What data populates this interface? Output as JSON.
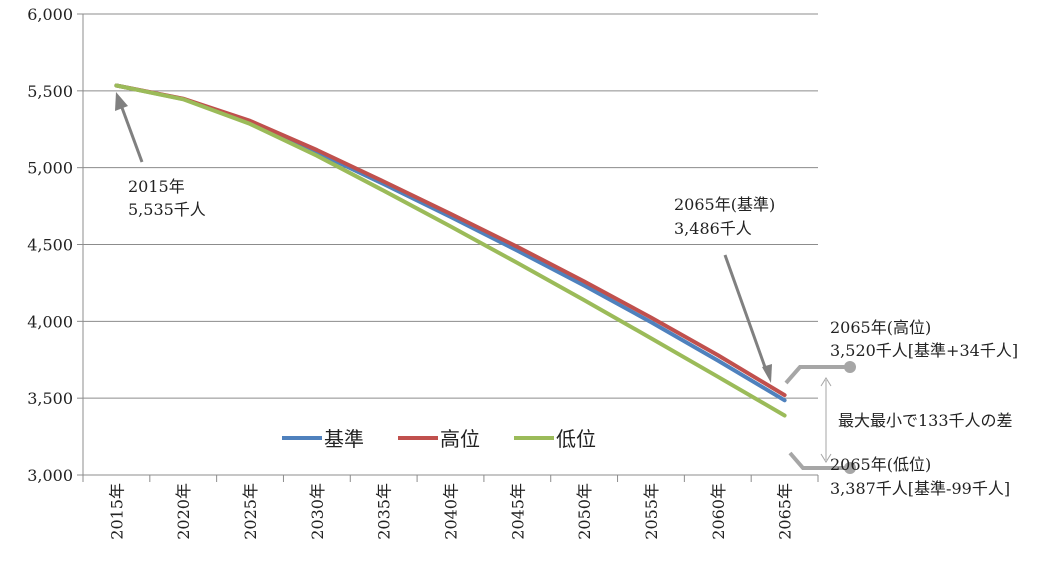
{
  "chart_data": {
    "type": "line",
    "categories": [
      "2015年",
      "2020年",
      "2025年",
      "2030年",
      "2035年",
      "2040年",
      "2045年",
      "2050年",
      "2055年",
      "2060年",
      "2065年"
    ],
    "ylim": [
      3000,
      6000
    ],
    "yticks": [
      3000,
      3500,
      4000,
      4500,
      5000,
      5500,
      6000
    ],
    "ytick_labels": [
      "3,000",
      "3,500",
      "4,000",
      "4,500",
      "5,000",
      "5,500",
      "6,000"
    ],
    "grid": true,
    "legend_position": "bottom-left inside plot",
    "series": [
      {
        "name": "基準",
        "color": "#4f81bd",
        "values": [
          5535,
          5447,
          5295,
          5100,
          4893,
          4680,
          4460,
          4233,
          3995,
          3745,
          3486
        ]
      },
      {
        "name": "高位",
        "color": "#c0504d",
        "values": [
          5535,
          5449,
          5305,
          5115,
          4910,
          4700,
          4485,
          4260,
          4025,
          3780,
          3520
        ]
      },
      {
        "name": "低位",
        "color": "#9bbb59",
        "values": [
          5535,
          5445,
          5285,
          5078,
          4850,
          4618,
          4380,
          4138,
          3890,
          3640,
          3387
        ]
      }
    ],
    "annotations": {
      "start_line1": "2015年",
      "start_line2": "5,535千人",
      "base_line1": "2065年(基準)",
      "base_line2": "3,486千人",
      "high_line1": "2065年(高位)",
      "high_line2": "3,520千人[基準+34千人]",
      "low_line1": "2065年(低位)",
      "low_line2": "3,387千人[基準-99千人]",
      "diff": "最大最小で133千人の差"
    }
  }
}
